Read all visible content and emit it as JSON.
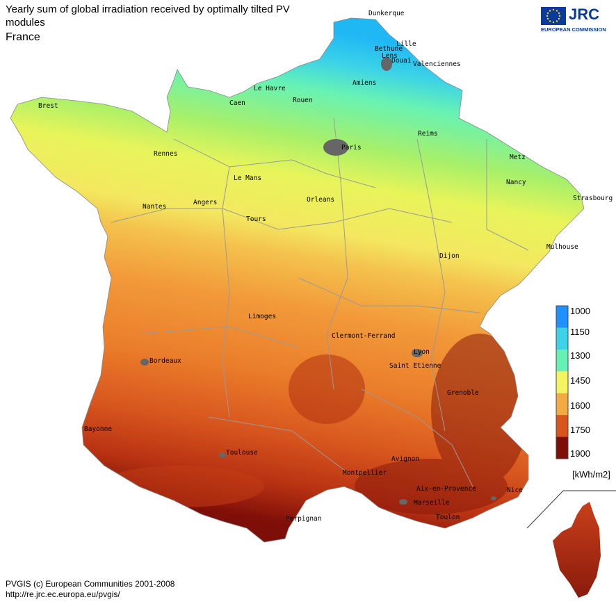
{
  "header": {
    "title": "Yearly sum of global irradiation received by optimally tilted PV modules",
    "country": "France"
  },
  "logo": {
    "name": "JRC",
    "subtitle": "EUROPEAN COMMISSION"
  },
  "footer": {
    "copyright": "PVGIS (c) European Communities 2001-2008",
    "url": "http://re.jrc.ec.europa.eu/pvgis/"
  },
  "legend": {
    "unit": "[kWh/m2]",
    "items": [
      {
        "value": "1000",
        "color": "#1e90ff"
      },
      {
        "value": "1150",
        "color": "#3cd2e8"
      },
      {
        "value": "1300",
        "color": "#66f2b4"
      },
      {
        "value": "1450",
        "color": "#f3f460"
      },
      {
        "value": "1600",
        "color": "#f2ab44"
      },
      {
        "value": "1750",
        "color": "#d8561e"
      },
      {
        "value": "1900",
        "color": "#7e0e08"
      }
    ]
  },
  "cities": [
    "Dunkerque",
    "Lille",
    "Bethune",
    "Lens",
    "Douai",
    "Valenciennes",
    "Amiens",
    "Le Havre",
    "Caen",
    "Rouen",
    "Brest",
    "Reims",
    "Paris",
    "Metz",
    "Rennes",
    "Le Mans",
    "Nancy",
    "Strasbourg",
    "Orleans",
    "Nantes",
    "Angers",
    "Tours",
    "Mulhouse",
    "Dijon",
    "Limoges",
    "Clermont-Ferrand",
    "Lyon",
    "Saint Etienne",
    "Bordeaux",
    "Grenoble",
    "Bayonne",
    "Toulouse",
    "Avignon",
    "Montpellier",
    "Aix-en-Provence",
    "Nice",
    "Marseille",
    "Toulon",
    "Perpignan"
  ]
}
